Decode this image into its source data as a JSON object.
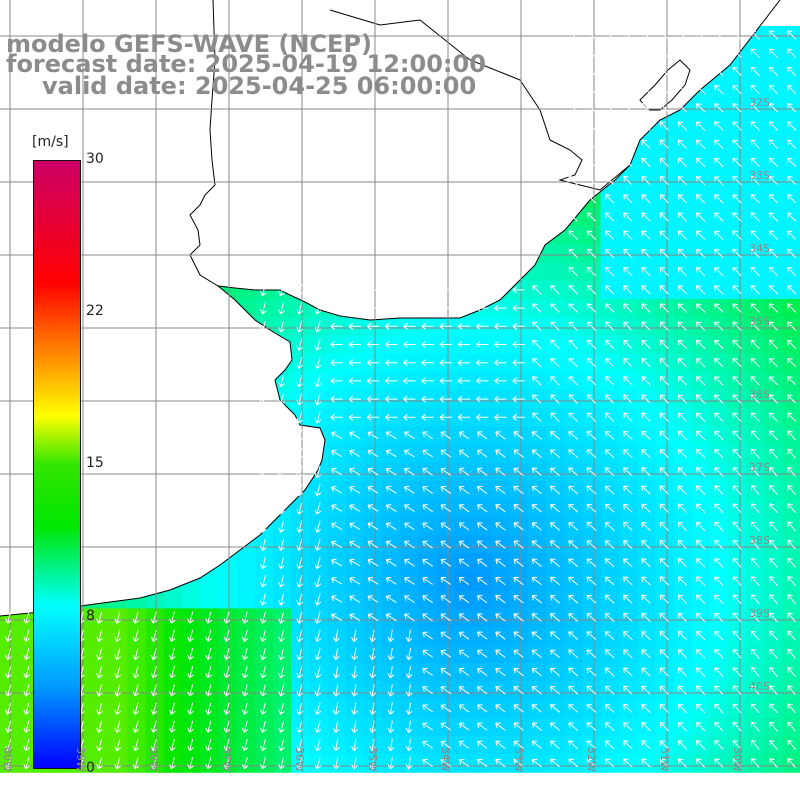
{
  "title": {
    "model": "modelo GEFS-WAVE (NCEP)",
    "forecast": "forecast date: 2025-04-19 12:00:00",
    "valid": "valid date: 2025-04-25 06:00:00"
  },
  "legend": {
    "unit": "[m/s]",
    "ticks": [
      {
        "value": 30,
        "label": "30"
      },
      {
        "value": 22,
        "label": "22"
      },
      {
        "value": 15,
        "label": "15"
      },
      {
        "value": 8,
        "label": "8"
      },
      {
        "value": 0,
        "label": "0"
      }
    ],
    "range": [
      0,
      30
    ],
    "colors": [
      "#0000ff",
      "#0096ff",
      "#00ffff",
      "#00e600",
      "#ffff00",
      "#ff9900",
      "#ff0000",
      "#cc0066"
    ]
  },
  "grid": {
    "lat_labels": [
      "32S",
      "33S",
      "34S",
      "35S",
      "36S",
      "37S",
      "38S",
      "39S",
      "40S"
    ],
    "lon_labels": [
      "60W",
      "59W",
      "58W",
      "57W",
      "56W",
      "55W",
      "54W",
      "53W",
      "52W",
      "51W",
      "50W"
    ]
  },
  "colors": {
    "land": "#ffffff",
    "coast": "#000000",
    "grid": "#888888",
    "arrow": "#ffffff",
    "text": "#8c8c8c"
  }
}
